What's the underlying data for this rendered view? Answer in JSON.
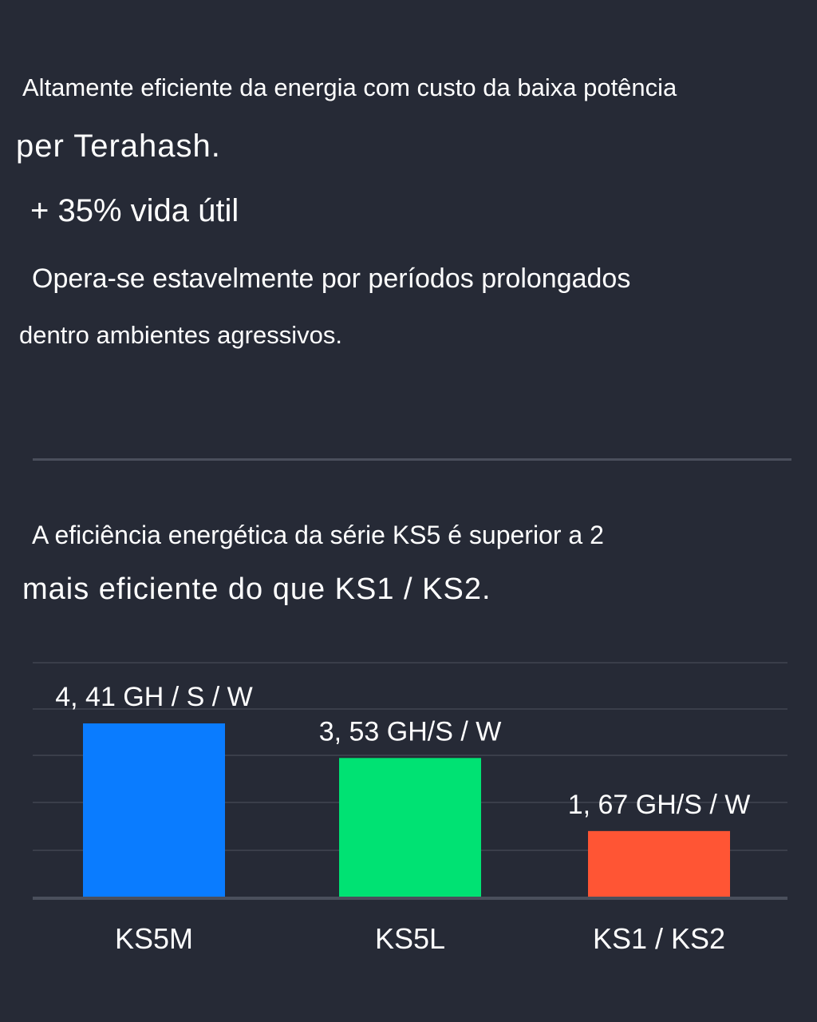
{
  "intro": {
    "line1": "Altamente eficiente da energia com custo da baixa potência",
    "line2": "per Terahash.",
    "lifespan": "+ 35% vida útil",
    "line3": "Opera-se estavelmente por períodos prolongados",
    "line4": "dentro ambientes agressivos."
  },
  "efficiency": {
    "line1": "A eficiência energética da série KS5 é superior a 2",
    "line2": "mais eficiente do que KS1 / KS2."
  },
  "chart_data": {
    "type": "bar",
    "categories": [
      "KS5M",
      "KS5L",
      "KS1 / KS2"
    ],
    "values": [
      4.41,
      3.53,
      1.67
    ],
    "value_labels": [
      "4, 41 GH / S / W",
      "3, 53 GH/S / W",
      "1, 67 GH/S / W"
    ],
    "colors": [
      "#0a7cff",
      "#00e273",
      "#ff5534"
    ],
    "ylim": [
      0,
      4.8
    ],
    "grid": true,
    "title": "",
    "xlabel": "",
    "ylabel": ""
  },
  "colors": {
    "background": "#262a36",
    "text": "#ffffff",
    "gridline": "#3a3e4a",
    "baseline": "#4a4f5c"
  }
}
